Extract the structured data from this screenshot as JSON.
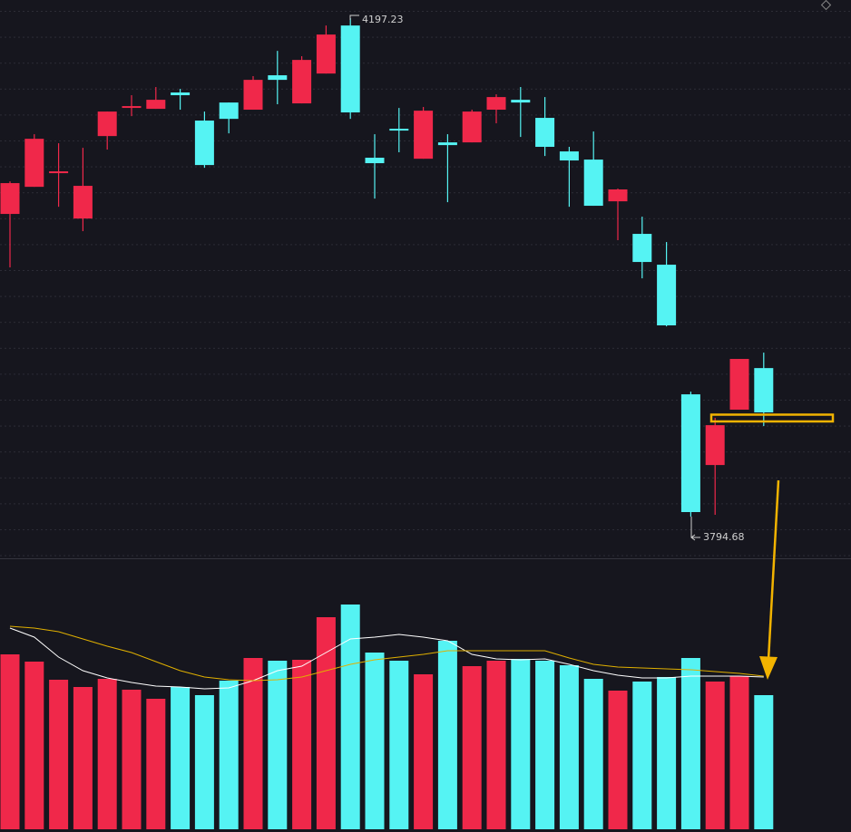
{
  "chart_data": [
    {
      "type": "candlestick",
      "up_color": "#f0284a",
      "down_color": "#55f3f3",
      "ylim": [
        3761.7,
        4211.9
      ],
      "open": [
        4039.1,
        4061.0,
        4072.8,
        4035.4,
        4102.0,
        4125.5,
        4124.0,
        4137.2,
        4114.5,
        4129.1,
        4123.3,
        4151.1,
        4128.4,
        4152.5,
        4191.3,
        4084.5,
        4107.9,
        4083.7,
        4096.9,
        4096.9,
        4123.3,
        4131.3,
        4116.7,
        4089.6,
        4083.0,
        4049.3,
        4023.0,
        3998.1,
        3893.4,
        3836.3,
        3881.0,
        3914.6
      ],
      "high": [
        4065.4,
        4103.5,
        4096.2,
        4092.5,
        4121.8,
        4135.0,
        4141.6,
        4140.1,
        4121.8,
        4129.1,
        4150.4,
        4170.8,
        4166.5,
        4191.3,
        4197.23,
        4103.5,
        4124.7,
        4125.5,
        4103.5,
        4123.3,
        4135.7,
        4141.6,
        4133.5,
        4093.3,
        4105.7,
        4059.6,
        4036.9,
        4016.4,
        3895.6,
        3874.4,
        3922.0,
        3927.1
      ],
      "low": [
        3995.9,
        4061.0,
        4044.9,
        4025.2,
        4091.1,
        4118.1,
        4124.0,
        4123.3,
        4076.4,
        4104.2,
        4123.3,
        4127.7,
        4128.4,
        4152.5,
        4115.9,
        4051.5,
        4088.9,
        4083.7,
        4048.6,
        4096.9,
        4112.3,
        4101.3,
        4085.9,
        4044.9,
        4045.7,
        4017.9,
        3987.1,
        3948.3,
        3794.68,
        3796.1,
        3881.0,
        3867.8
      ],
      "close": [
        4064.0,
        4099.8,
        4073.5,
        4061.8,
        4121.8,
        4126.2,
        4131.3,
        4135.0,
        4078.6,
        4115.9,
        4147.4,
        4147.4,
        4163.5,
        4184.0,
        4121.1,
        4080.1,
        4107.2,
        4122.5,
        4094.7,
        4121.8,
        4133.5,
        4129.1,
        4093.3,
        4082.3,
        4045.7,
        4058.9,
        4000.3,
        3949.1,
        3798.3,
        3868.5,
        3922.0,
        3878.8
      ]
    },
    {
      "type": "bar",
      "ylim": [
        0,
        298
      ],
      "values": [
        193,
        185,
        165,
        157,
        166,
        154,
        144,
        157,
        148,
        164,
        189,
        186,
        187,
        234,
        248,
        195,
        186,
        171,
        208,
        180,
        186,
        188,
        186,
        181,
        166,
        153,
        163,
        168,
        189,
        163,
        169,
        148
      ],
      "lines": [
        {
          "color": "#ffffff",
          "values": [
            222,
            212,
            190,
            175,
            167,
            162,
            158,
            157,
            155,
            156,
            164,
            175,
            180,
            195,
            210,
            212,
            215,
            212,
            208,
            193,
            188,
            187,
            188,
            182,
            175,
            170,
            167,
            167,
            169,
            169,
            169,
            168
          ]
        },
        {
          "color": "#e0b000",
          "values": [
            224,
            222,
            218,
            210,
            202,
            195,
            185,
            175,
            168,
            165,
            164,
            165,
            168,
            175,
            182,
            187,
            190,
            193,
            197,
            197,
            197,
            197,
            197,
            189,
            182,
            179,
            178,
            177,
            176,
            174,
            172,
            169
          ]
        }
      ]
    }
  ]
}
